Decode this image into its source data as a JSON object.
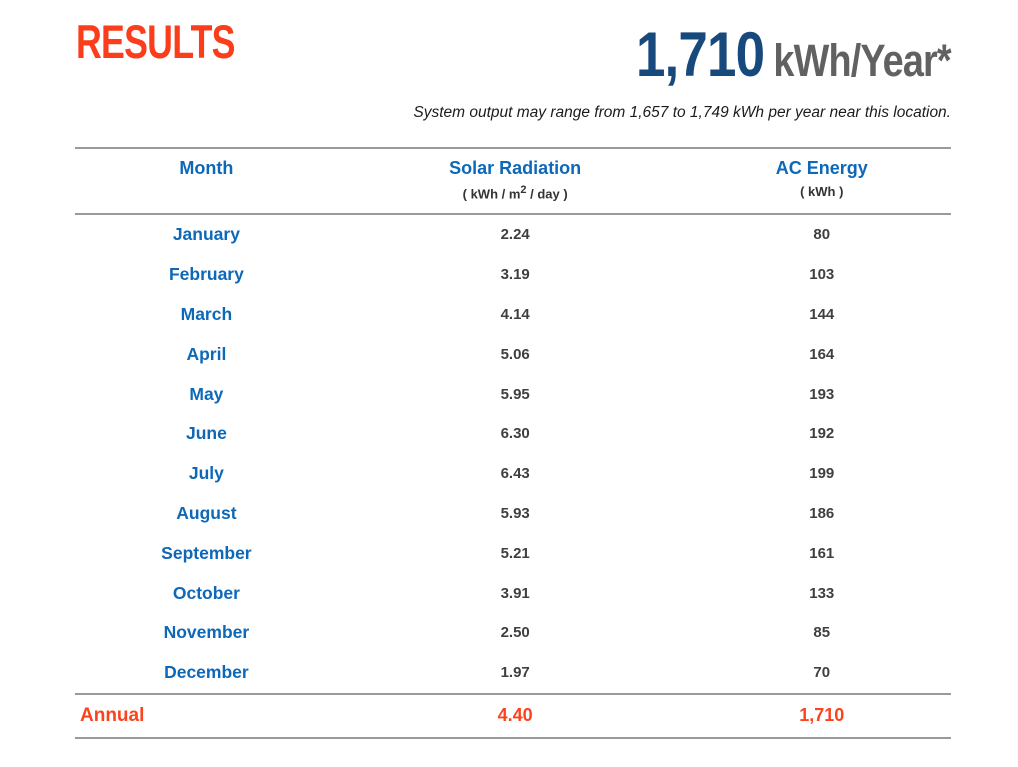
{
  "page": {
    "title": "RESULTS",
    "annual_output_value": "1,710",
    "annual_output_unit": "kWh/Year*",
    "range_note": "System output may range from 1,657 to 1,749 kWh per year near this location."
  },
  "colors": {
    "accent_orange": "#fb3d1c",
    "header_blue": "#0d68b8",
    "big_number_navy": "#17497c",
    "unit_gray": "#616161",
    "value_gray": "#3f3f3f",
    "rule_gray": "#9a9a9a"
  },
  "table": {
    "columns": [
      {
        "label": "Month"
      },
      {
        "label": "Solar Radiation",
        "unit_prefix": "( kWh / m",
        "unit_sup": "2",
        "unit_suffix": " / day )"
      },
      {
        "label": "AC Energy",
        "unit": "( kWh )"
      }
    ],
    "rows": [
      {
        "month": "January",
        "solar_radiation": "2.24",
        "ac_energy": "80"
      },
      {
        "month": "February",
        "solar_radiation": "3.19",
        "ac_energy": "103"
      },
      {
        "month": "March",
        "solar_radiation": "4.14",
        "ac_energy": "144"
      },
      {
        "month": "April",
        "solar_radiation": "5.06",
        "ac_energy": "164"
      },
      {
        "month": "May",
        "solar_radiation": "5.95",
        "ac_energy": "193"
      },
      {
        "month": "June",
        "solar_radiation": "6.30",
        "ac_energy": "192"
      },
      {
        "month": "July",
        "solar_radiation": "6.43",
        "ac_energy": "199"
      },
      {
        "month": "August",
        "solar_radiation": "5.93",
        "ac_energy": "186"
      },
      {
        "month": "September",
        "solar_radiation": "5.21",
        "ac_energy": "161"
      },
      {
        "month": "October",
        "solar_radiation": "3.91",
        "ac_energy": "133"
      },
      {
        "month": "November",
        "solar_radiation": "2.50",
        "ac_energy": "85"
      },
      {
        "month": "December",
        "solar_radiation": "1.97",
        "ac_energy": "70"
      }
    ],
    "annual": {
      "label": "Annual",
      "solar_radiation": "4.40",
      "ac_energy": "1,710"
    }
  }
}
